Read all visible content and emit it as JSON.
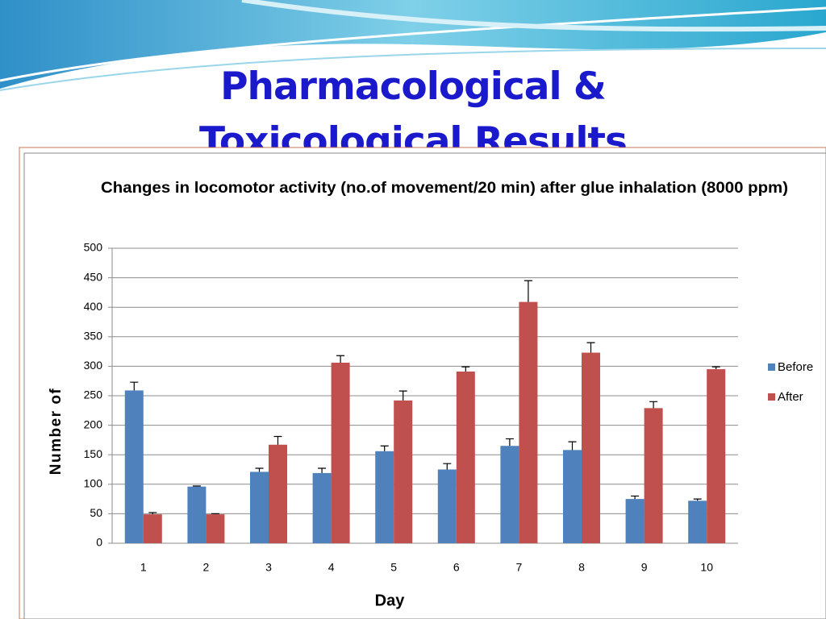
{
  "slide_title": "Pharmacological & Toxicological Results",
  "chart_data": {
    "type": "bar",
    "title": "Changes in locomotor activity (no.of movement/20 min) after glue inhalation (8000 ppm)",
    "x_label": "Day",
    "y_label": "Number of",
    "categories": [
      "1",
      "2",
      "3",
      "4",
      "5",
      "6",
      "7",
      "8",
      "9",
      "10"
    ],
    "series": [
      {
        "name": "Before",
        "color": "#4f81bd",
        "values": [
          259,
          96,
          121,
          119,
          156,
          125,
          165,
          158,
          75,
          72
        ],
        "errors": [
          14,
          1,
          6,
          8,
          9,
          10,
          12,
          14,
          5,
          3
        ]
      },
      {
        "name": "After",
        "color": "#c0504d",
        "values": [
          49,
          49,
          167,
          306,
          242,
          291,
          409,
          323,
          229,
          295
        ],
        "errors": [
          3,
          1,
          14,
          12,
          16,
          8,
          36,
          17,
          11,
          4
        ]
      }
    ],
    "ylim": [
      0,
      500
    ],
    "yticks": [
      0,
      50,
      100,
      150,
      200,
      250,
      300,
      350,
      400,
      450,
      500
    ],
    "grid": true,
    "legend": "right"
  }
}
